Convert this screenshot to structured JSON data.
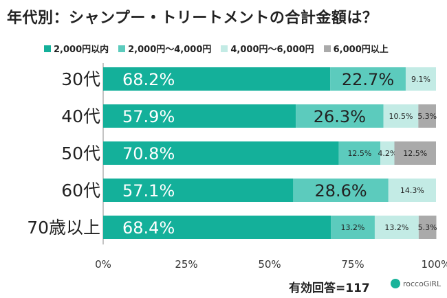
{
  "title": "年代別：シャンプー・トリートメントの合計金額は？",
  "footnote": "有効回答=117",
  "brand": "roccoGiRL",
  "chart_data": {
    "type": "bar",
    "orientation": "horizontal-stacked-100",
    "categories": [
      "30代",
      "40代",
      "50代",
      "60代",
      "70歳以上"
    ],
    "series": [
      {
        "name": "2,000円以内",
        "color": "#14b09a",
        "values": [
          68.2,
          57.9,
          70.8,
          57.1,
          68.4
        ]
      },
      {
        "name": "2,000円〜4,000円",
        "color": "#5ccbbd",
        "values": [
          22.7,
          26.3,
          12.5,
          28.6,
          13.2
        ]
      },
      {
        "name": "4,000円〜6,000円",
        "color": "#c3ebe5",
        "values": [
          9.1,
          10.5,
          4.2,
          14.3,
          13.2
        ]
      },
      {
        "name": "6,000円以上",
        "color": "#aaaaaa",
        "values": [
          0,
          5.3,
          12.5,
          0,
          5.3
        ]
      }
    ],
    "xticks": [
      "0%",
      "25%",
      "50%",
      "75%",
      "100%"
    ],
    "xlim": [
      0,
      100
    ],
    "grid": false,
    "legend": "top"
  }
}
